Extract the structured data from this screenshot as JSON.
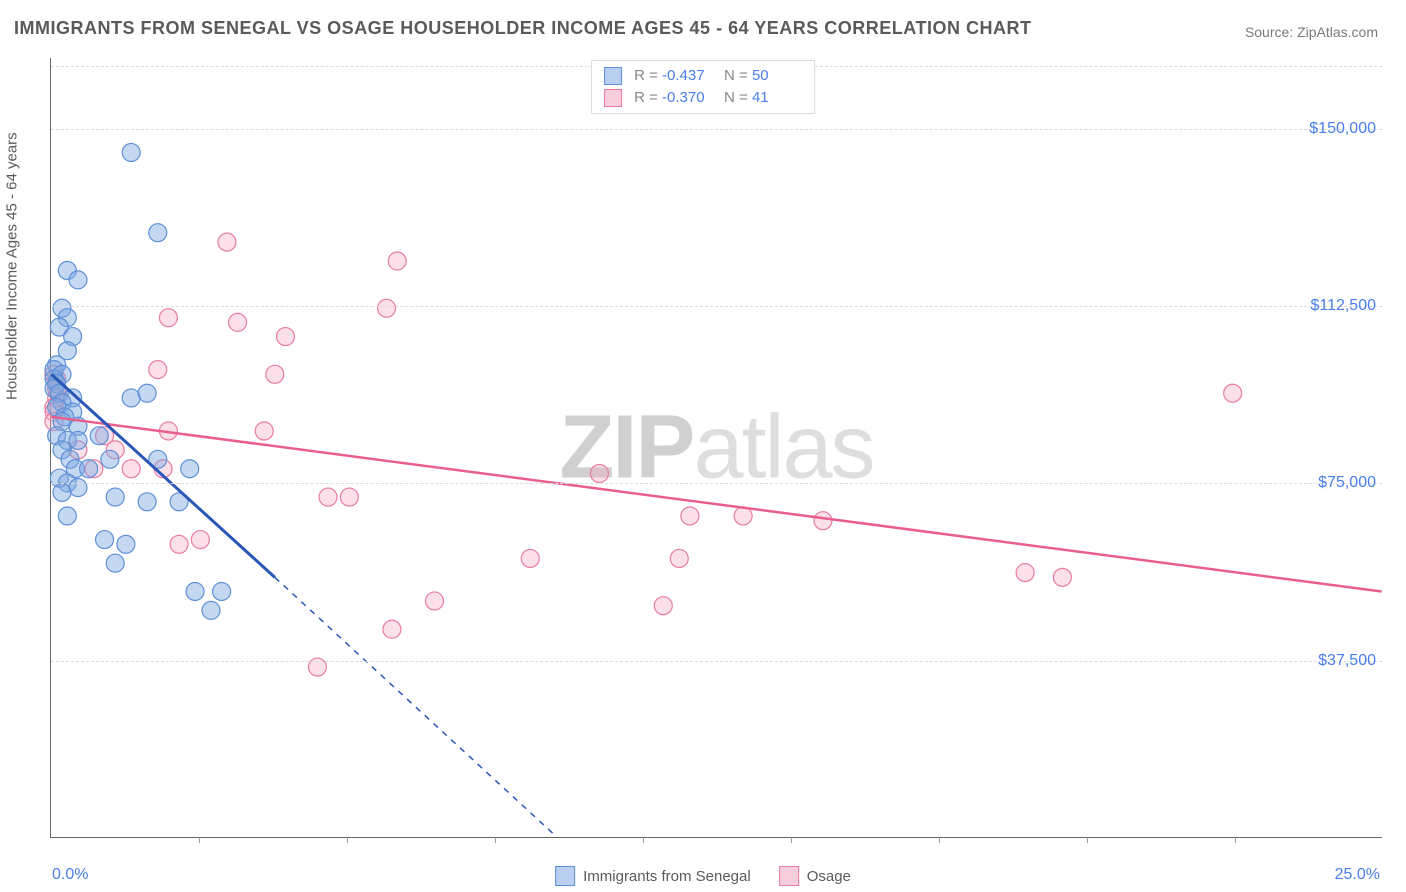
{
  "title": "IMMIGRANTS FROM SENEGAL VS OSAGE HOUSEHOLDER INCOME AGES 45 - 64 YEARS CORRELATION CHART",
  "source_label": "Source: ZipAtlas.com",
  "y_axis_title": "Householder Income Ages 45 - 64 years",
  "x_axis": {
    "min": 0.0,
    "max": 25.0,
    "min_label": "0.0%",
    "max_label": "25.0%",
    "tick_count": 9
  },
  "y_axis": {
    "min": 0,
    "max": 165000,
    "gridlines": [
      37500,
      75000,
      112500,
      150000
    ],
    "labels": [
      "$37,500",
      "$75,000",
      "$112,500",
      "$150,000"
    ]
  },
  "watermark": {
    "bold": "ZIP",
    "rest": "atlas"
  },
  "legend_top": [
    {
      "swatch": "blue",
      "r_label": "R =",
      "r": "-0.437",
      "n_label": "N =",
      "n": "50"
    },
    {
      "swatch": "pink",
      "r_label": "R =",
      "r": "-0.370",
      "n_label": "N =",
      "n": "41"
    }
  ],
  "legend_bottom": [
    {
      "swatch": "blue",
      "label": "Immigrants from Senegal"
    },
    {
      "swatch": "pink",
      "label": "Osage"
    }
  ],
  "colors": {
    "blue_fill": "rgba(125,168,227,0.45)",
    "blue_stroke": "#5f8fd6",
    "blue_line": "#2956b7",
    "pink_fill": "rgba(244,166,191,0.35)",
    "pink_stroke": "#e87ba2",
    "pink_line": "#ea5e8d",
    "grid": "#dcdcdc",
    "axis": "#666666",
    "tick_label": "#4a7ee8"
  },
  "marker_radius": 9,
  "series": {
    "blue": {
      "trend": {
        "x1": 0.0,
        "y1": 98000,
        "x2": 4.2,
        "y2": 55000,
        "dash_to_x": 9.5,
        "dash_to_y": 0
      },
      "points": [
        [
          1.5,
          145000
        ],
        [
          2.0,
          128000
        ],
        [
          0.3,
          120000
        ],
        [
          0.5,
          118000
        ],
        [
          0.2,
          112000
        ],
        [
          0.3,
          110000
        ],
        [
          0.15,
          108000
        ],
        [
          0.4,
          106000
        ],
        [
          0.3,
          103000
        ],
        [
          0.1,
          100000
        ],
        [
          0.05,
          99000
        ],
        [
          0.2,
          98000
        ],
        [
          0.05,
          97000
        ],
        [
          0.1,
          96000
        ],
        [
          0.05,
          95000
        ],
        [
          0.15,
          94000
        ],
        [
          0.4,
          93000
        ],
        [
          1.5,
          93000
        ],
        [
          1.8,
          94000
        ],
        [
          0.2,
          92000
        ],
        [
          0.1,
          91000
        ],
        [
          0.4,
          90000
        ],
        [
          0.25,
          89000
        ],
        [
          0.2,
          88000
        ],
        [
          0.5,
          87000
        ],
        [
          0.1,
          85000
        ],
        [
          0.9,
          85000
        ],
        [
          0.3,
          84000
        ],
        [
          0.5,
          84000
        ],
        [
          0.2,
          82000
        ],
        [
          0.35,
          80000
        ],
        [
          1.1,
          80000
        ],
        [
          2.0,
          80000
        ],
        [
          0.45,
          78000
        ],
        [
          0.7,
          78000
        ],
        [
          2.6,
          78000
        ],
        [
          0.15,
          76000
        ],
        [
          0.3,
          75000
        ],
        [
          0.5,
          74000
        ],
        [
          0.2,
          73000
        ],
        [
          1.2,
          72000
        ],
        [
          1.8,
          71000
        ],
        [
          2.4,
          71000
        ],
        [
          0.3,
          68000
        ],
        [
          1.0,
          63000
        ],
        [
          1.4,
          62000
        ],
        [
          1.2,
          58000
        ],
        [
          2.7,
          52000
        ],
        [
          3.2,
          52000
        ],
        [
          3.0,
          48000
        ]
      ]
    },
    "pink": {
      "trend": {
        "x1": 0.0,
        "y1": 89000,
        "x2": 25.0,
        "y2": 52000
      },
      "points": [
        [
          0.05,
          98000
        ],
        [
          0.1,
          97000
        ],
        [
          0.1,
          95000
        ],
        [
          0.15,
          94000
        ],
        [
          0.1,
          93000
        ],
        [
          0.05,
          91000
        ],
        [
          0.05,
          90000
        ],
        [
          0.05,
          88000
        ],
        [
          3.3,
          126000
        ],
        [
          6.5,
          122000
        ],
        [
          6.3,
          112000
        ],
        [
          2.2,
          110000
        ],
        [
          3.5,
          109000
        ],
        [
          4.4,
          106000
        ],
        [
          2.0,
          99000
        ],
        [
          4.2,
          98000
        ],
        [
          22.2,
          94000
        ],
        [
          2.2,
          86000
        ],
        [
          1.0,
          85000
        ],
        [
          4.0,
          86000
        ],
        [
          0.5,
          82000
        ],
        [
          1.2,
          82000
        ],
        [
          0.8,
          78000
        ],
        [
          1.5,
          78000
        ],
        [
          2.1,
          78000
        ],
        [
          10.3,
          77000
        ],
        [
          5.2,
          72000
        ],
        [
          5.6,
          72000
        ],
        [
          12.0,
          68000
        ],
        [
          13.0,
          68000
        ],
        [
          14.5,
          67000
        ],
        [
          2.4,
          62000
        ],
        [
          2.8,
          63000
        ],
        [
          9.0,
          59000
        ],
        [
          11.8,
          59000
        ],
        [
          18.3,
          56000
        ],
        [
          19.0,
          55000
        ],
        [
          7.2,
          50000
        ],
        [
          11.5,
          49000
        ],
        [
          6.4,
          44000
        ],
        [
          5.0,
          36000
        ]
      ]
    }
  }
}
